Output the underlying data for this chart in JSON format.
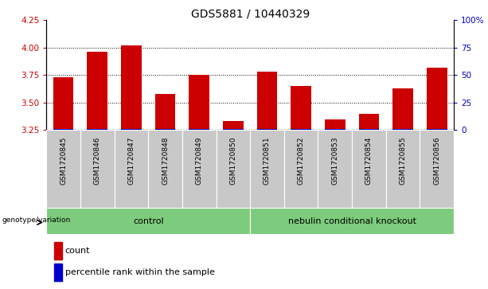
{
  "title": "GDS5881 / 10440329",
  "samples": [
    "GSM1720845",
    "GSM1720846",
    "GSM1720847",
    "GSM1720848",
    "GSM1720849",
    "GSM1720850",
    "GSM1720851",
    "GSM1720852",
    "GSM1720853",
    "GSM1720854",
    "GSM1720855",
    "GSM1720856"
  ],
  "count_values": [
    3.73,
    3.96,
    4.02,
    3.58,
    3.75,
    3.33,
    3.78,
    3.65,
    3.35,
    3.4,
    3.63,
    3.82
  ],
  "percentile_values": [
    3.259,
    3.263,
    3.262,
    3.26,
    3.261,
    3.261,
    3.261,
    3.26,
    3.259,
    3.26,
    3.261,
    3.262
  ],
  "ylim": [
    3.25,
    4.25
  ],
  "yticks": [
    3.25,
    3.5,
    3.75,
    4.0,
    4.25
  ],
  "right_yticks": [
    0,
    25,
    50,
    75,
    100
  ],
  "right_ytick_labels": [
    "0",
    "25",
    "50",
    "75",
    "100%"
  ],
  "bar_color_red": "#cc0000",
  "bar_color_blue": "#0000cc",
  "bar_width": 0.6,
  "base": 3.25,
  "ctrl_label": "control",
  "neb_label": "nebulin conditional knockout",
  "group_color": "#7dcc7d",
  "group_row_label": "genotype/variation",
  "legend_count_label": "count",
  "legend_pct_label": "percentile rank within the sample",
  "legend_color_red": "#cc0000",
  "legend_color_blue": "#0000cc",
  "title_fontsize": 10,
  "tick_fontsize": 6.5,
  "axis_color_red": "#cc0000",
  "axis_color_blue": "#0000cc",
  "xticklabel_bg": "#c8c8c8"
}
